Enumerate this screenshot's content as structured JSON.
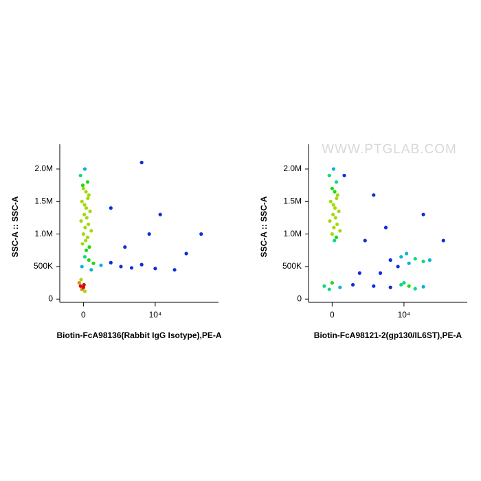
{
  "chart_data": [
    {
      "type": "scatter",
      "x_label": "Biotin-FcA98136(Rabbit IgG Isotype),PE-A",
      "y_label": "SSC-A :: SSC-A",
      "xscale": "symlog",
      "linthresh": 1000,
      "xlim": [
        -1200,
        90000
      ],
      "ylim": [
        -50000,
        2380000
      ],
      "xticks": [
        0,
        {
          "value": 10000,
          "label": "10⁴"
        }
      ],
      "yticks": [
        0,
        {
          "value": 500000,
          "label": "500K"
        },
        {
          "value": 1000000,
          "label": "1.0M"
        },
        {
          "value": 1500000,
          "label": "1.5M"
        },
        {
          "value": 2000000,
          "label": "2.0M"
        }
      ],
      "x": [
        -100,
        50,
        150,
        0,
        200,
        -50,
        100,
        250,
        30,
        120,
        -80,
        180,
        60,
        300,
        0,
        150,
        80,
        -30,
        220,
        100,
        40,
        160,
        90,
        -20,
        50,
        200,
        400,
        800,
        1500,
        2500,
        4000,
        6000,
        10000,
        20000,
        -50,
        300,
        -100,
        -50,
        0,
        -150,
        50,
        -80,
        20,
        3000,
        8000,
        12000,
        50000,
        30000,
        6000,
        1500
      ],
      "y": [
        1900000,
        2000000,
        1800000,
        1700000,
        1600000,
        1500000,
        1400000,
        1350000,
        1300000,
        1250000,
        1200000,
        1150000,
        1100000,
        1050000,
        1000000,
        950000,
        900000,
        850000,
        800000,
        750000,
        1450000,
        1550000,
        1650000,
        1750000,
        650000,
        600000,
        550000,
        520000,
        560000,
        500000,
        480000,
        530000,
        470000,
        450000,
        500000,
        450000,
        200000,
        150000,
        180000,
        250000,
        120000,
        300000,
        220000,
        800000,
        1000000,
        1300000,
        1000000,
        700000,
        2100000,
        1400000
      ]
    },
    {
      "type": "scatter",
      "x_label": "Biotin-FcA98121-2(gp130/IL6ST),PE-A",
      "y_label": "SSC-A :: SSC-A",
      "watermark": "WWW.PTGLAB.COM",
      "xscale": "symlog",
      "linthresh": 1000,
      "xlim": [
        -1200,
        90000
      ],
      "ylim": [
        -50000,
        2380000
      ],
      "xticks": [
        0,
        {
          "value": 10000,
          "label": "10⁴"
        }
      ],
      "yticks": [
        0,
        {
          "value": 500000,
          "label": "500K"
        },
        {
          "value": 1000000,
          "label": "1.0M"
        },
        {
          "value": 1500000,
          "label": "1.5M"
        },
        {
          "value": 2000000,
          "label": "2.0M"
        }
      ],
      "x": [
        -100,
        50,
        150,
        0,
        200,
        -50,
        100,
        250,
        30,
        120,
        -80,
        180,
        60,
        300,
        0,
        150,
        80,
        40,
        160,
        90,
        6000,
        9000,
        12000,
        15000,
        8000,
        20000,
        11000,
        25000,
        -300,
        0,
        300,
        1000,
        3000,
        6000,
        9000,
        12000,
        15000,
        20000,
        10000,
        -100,
        2000,
        5000,
        20000,
        3000,
        40000,
        1500,
        4000,
        500
      ],
      "y": [
        1900000,
        2000000,
        1800000,
        1700000,
        1600000,
        1500000,
        1400000,
        1350000,
        1300000,
        1250000,
        1200000,
        1150000,
        1100000,
        1050000,
        1000000,
        950000,
        900000,
        1450000,
        1550000,
        1650000,
        600000,
        650000,
        550000,
        620000,
        500000,
        580000,
        700000,
        600000,
        200000,
        250000,
        180000,
        220000,
        200000,
        180000,
        220000,
        200000,
        160000,
        190000,
        250000,
        150000,
        900000,
        1100000,
        1300000,
        1600000,
        900000,
        400000,
        400000,
        1900000
      ]
    }
  ]
}
